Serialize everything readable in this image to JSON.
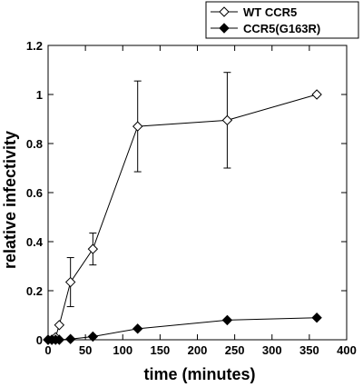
{
  "chart_data": {
    "type": "line",
    "title": "",
    "xlabel": "time (minutes)",
    "ylabel": "relative infectivity",
    "xlim": [
      0,
      400
    ],
    "ylim": [
      0,
      1.2
    ],
    "x_ticks": [
      0,
      50,
      100,
      150,
      200,
      250,
      300,
      350,
      400
    ],
    "y_ticks": [
      0,
      0.2,
      0.4,
      0.6,
      0.8,
      1,
      1.2
    ],
    "grid": false,
    "legend_position": "top-right, outside plot",
    "series": [
      {
        "name": "WT CCR5",
        "marker": "open-diamond",
        "color": "#000000",
        "points": [
          {
            "x": 0,
            "y": 0,
            "err": 0
          },
          {
            "x": 5,
            "y": 0,
            "err": 0
          },
          {
            "x": 10,
            "y": 0.01,
            "err": 0
          },
          {
            "x": 15,
            "y": 0.06,
            "err": 0
          },
          {
            "x": 30,
            "y": 0.235,
            "err": 0.1
          },
          {
            "x": 60,
            "y": 0.37,
            "err": 0.065
          },
          {
            "x": 120,
            "y": 0.87,
            "err": 0.185
          },
          {
            "x": 240,
            "y": 0.895,
            "err": 0.195
          },
          {
            "x": 360,
            "y": 1.0,
            "err": 0
          }
        ]
      },
      {
        "name": "CCR5(G163R)",
        "marker": "filled-diamond",
        "color": "#000000",
        "points": [
          {
            "x": 0,
            "y": 0,
            "err": 0
          },
          {
            "x": 5,
            "y": 0,
            "err": 0
          },
          {
            "x": 10,
            "y": 0,
            "err": 0
          },
          {
            "x": 15,
            "y": 0,
            "err": 0
          },
          {
            "x": 30,
            "y": 0.003,
            "err": 0
          },
          {
            "x": 60,
            "y": 0.013,
            "err": 0
          },
          {
            "x": 120,
            "y": 0.045,
            "err": 0
          },
          {
            "x": 240,
            "y": 0.08,
            "err": 0
          },
          {
            "x": 360,
            "y": 0.09,
            "err": 0
          }
        ]
      }
    ]
  }
}
